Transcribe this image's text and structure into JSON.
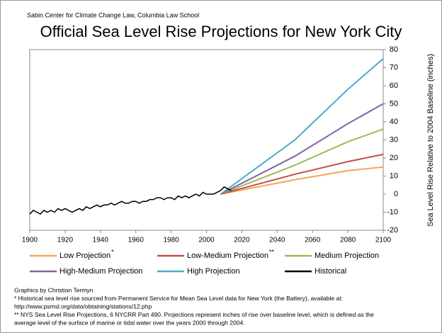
{
  "chart_data": {
    "type": "line",
    "source": "Sabin Center for Climate Change Law, Columbia Law School",
    "title": "Official Sea Level Rise Projections for New York City",
    "y_label": "Sea Level Rise Relative to 2004 Baseline (inches)",
    "xlim": [
      1900,
      2100
    ],
    "xticks": [
      1900,
      1920,
      1940,
      1960,
      1980,
      2000,
      2020,
      2040,
      2060,
      2080,
      2100
    ],
    "ylim": [
      -20,
      80
    ],
    "yticks": [
      -20,
      -10,
      0,
      10,
      20,
      30,
      40,
      50,
      60,
      70,
      80
    ],
    "y_axis_side": "right",
    "grid": false,
    "series": [
      {
        "name": "Low Projection",
        "footnote_mark": "*",
        "color": "#f7a35c",
        "x": [
          2008,
          2050,
          2080,
          2100
        ],
        "values": [
          0,
          8,
          13,
          15
        ]
      },
      {
        "name": "Low-Medium Projection",
        "footnote_mark": "**",
        "color": "#c0504d",
        "x": [
          2008,
          2050,
          2080,
          2100
        ],
        "values": [
          0,
          11,
          18,
          22
        ]
      },
      {
        "name": "Medium Projection",
        "color": "#9bbb59",
        "x": [
          2008,
          2050,
          2080,
          2100
        ],
        "values": [
          0,
          16,
          29,
          36
        ]
      },
      {
        "name": "High-Medium Projection",
        "color": "#8064a2",
        "x": [
          2008,
          2050,
          2080,
          2100
        ],
        "values": [
          0,
          21,
          39,
          50
        ]
      },
      {
        "name": "High Projection",
        "color": "#4bacc6",
        "x": [
          2008,
          2050,
          2080,
          2100
        ],
        "values": [
          0,
          30,
          58,
          75
        ]
      },
      {
        "name": "Historical",
        "color": "#000000",
        "x": [
          1900,
          1902,
          1904,
          1906,
          1908,
          1910,
          1912,
          1914,
          1916,
          1918,
          1920,
          1922,
          1924,
          1926,
          1928,
          1930,
          1932,
          1934,
          1936,
          1938,
          1940,
          1942,
          1944,
          1946,
          1948,
          1950,
          1952,
          1954,
          1956,
          1958,
          1960,
          1962,
          1964,
          1966,
          1968,
          1970,
          1972,
          1974,
          1976,
          1978,
          1980,
          1982,
          1984,
          1986,
          1988,
          1990,
          1992,
          1994,
          1996,
          1998,
          2000,
          2002,
          2004,
          2006,
          2008,
          2010,
          2012,
          2014
        ],
        "values": [
          -11,
          -9,
          -10,
          -11,
          -9,
          -10,
          -9,
          -10,
          -8,
          -9,
          -8,
          -9,
          -10,
          -9,
          -8,
          -9,
          -7,
          -8,
          -7,
          -6,
          -7,
          -6,
          -6,
          -5,
          -6,
          -5,
          -4,
          -5,
          -5,
          -4,
          -4,
          -5,
          -4,
          -4,
          -3,
          -3,
          -2,
          -2,
          -3,
          -2,
          -2,
          -3,
          -1,
          -2,
          -1,
          -2,
          -1,
          0,
          -1,
          1,
          0,
          0,
          0,
          1,
          2,
          4,
          3,
          2
        ]
      }
    ],
    "notes": [
      "Graphics by Christian Termyn",
      "* Historical sea level rise sourced from Permanent Service for Mean Sea Level data for New York (the Battery), available at:",
      "http://www.psmsl.org/data/obtaining/stations/12.php",
      "** NYS Sea Level Rise Projections, 6 NYCRR Part 490. Projections represent inches of rise over baseline level, which is defined as the",
      "average level of the surface of marine or tidal water over the years 2000 through 2004."
    ]
  }
}
